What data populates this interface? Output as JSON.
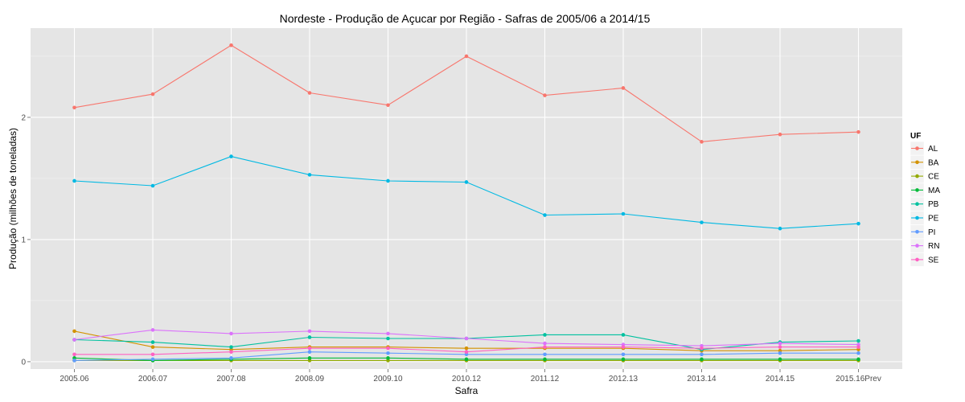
{
  "chart_data": {
    "type": "line",
    "title": "Nordeste  - Produção de Açucar por Região - Safras de 2005/06 a 2014/15",
    "xlabel": "Safra",
    "ylabel": "Produção (milhões de toneladas)",
    "categories": [
      "2005.06",
      "2006.07",
      "2007.08",
      "2008.09",
      "2009.10",
      "2010.12",
      "2011.12",
      "2012.13",
      "2013.14",
      "2014.15",
      "2015.16Prev"
    ],
    "ylim": [
      -0.06,
      2.73
    ],
    "yticks": [
      0,
      1,
      2
    ],
    "grid": true,
    "legend": {
      "title": "UF",
      "position": "right"
    },
    "series": [
      {
        "name": "AL",
        "color": "#F8766D",
        "values": [
          2.08,
          2.19,
          2.59,
          2.2,
          2.1,
          2.5,
          2.18,
          2.24,
          1.8,
          1.86,
          1.88
        ]
      },
      {
        "name": "BA",
        "color": "#D39200",
        "values": [
          0.25,
          0.12,
          0.1,
          0.12,
          0.12,
          0.11,
          0.11,
          0.11,
          0.09,
          0.09,
          0.1
        ]
      },
      {
        "name": "CE",
        "color": "#93AA00",
        "values": [
          0.01,
          0.01,
          0.01,
          0.01,
          0.01,
          0.01,
          0.01,
          0.01,
          0.01,
          0.01,
          0.01
        ]
      },
      {
        "name": "MA",
        "color": "#00BA38",
        "values": [
          0.03,
          0.01,
          0.02,
          0.03,
          0.03,
          0.02,
          0.02,
          0.02,
          0.02,
          0.02,
          0.02
        ]
      },
      {
        "name": "PB",
        "color": "#00C19F",
        "values": [
          0.18,
          0.16,
          0.12,
          0.2,
          0.19,
          0.19,
          0.22,
          0.22,
          0.1,
          0.16,
          0.17
        ]
      },
      {
        "name": "PE",
        "color": "#00B9E3",
        "values": [
          1.48,
          1.44,
          1.68,
          1.53,
          1.48,
          1.47,
          1.2,
          1.21,
          1.14,
          1.09,
          1.13
        ]
      },
      {
        "name": "PI",
        "color": "#619CFF",
        "values": [
          0.01,
          0.02,
          0.03,
          0.08,
          0.07,
          0.06,
          0.06,
          0.06,
          0.06,
          0.07,
          0.07
        ]
      },
      {
        "name": "RN",
        "color": "#DB72FB",
        "values": [
          0.18,
          0.26,
          0.23,
          0.25,
          0.23,
          0.19,
          0.15,
          0.14,
          0.13,
          0.15,
          0.14
        ]
      },
      {
        "name": "SE",
        "color": "#FF61C3",
        "values": [
          0.06,
          0.06,
          0.08,
          0.11,
          0.11,
          0.08,
          0.12,
          0.12,
          0.11,
          0.12,
          0.12
        ]
      }
    ]
  }
}
